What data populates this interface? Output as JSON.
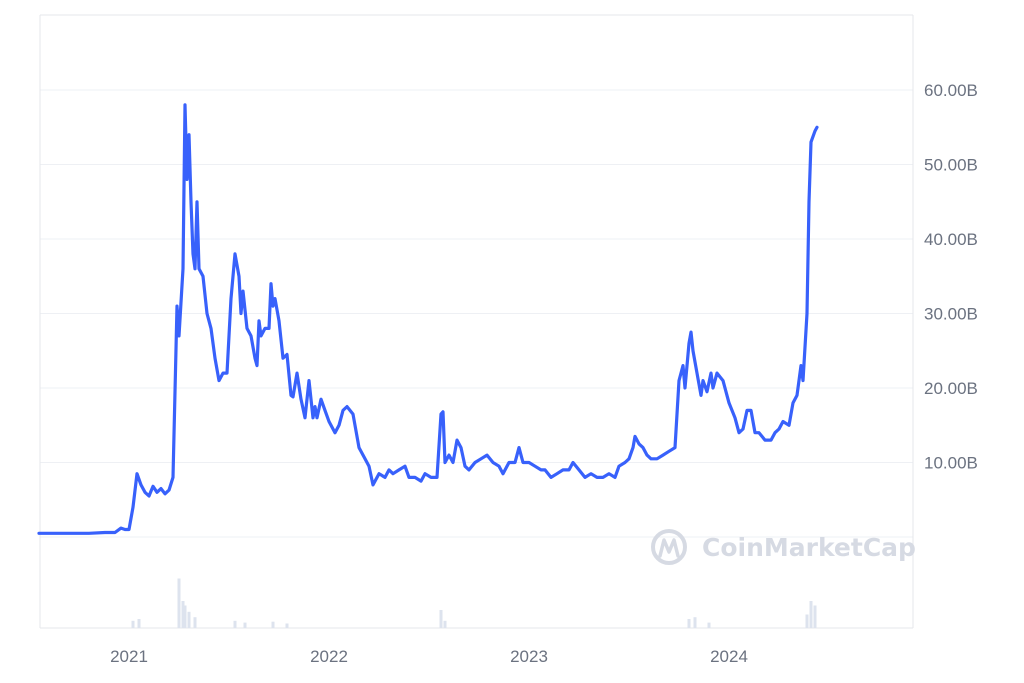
{
  "colors": {
    "line": "#3861fb",
    "grid": "#eef0f4",
    "frame": "#e5e7eb",
    "tick_text": "#6b7280",
    "volume": "#dde3ee",
    "watermark": "#d6dae3"
  },
  "watermark": {
    "text": "CoinMarketCap",
    "icon": "coinmarketcap-logo-icon"
  },
  "chart_data": {
    "type": "line",
    "title": "",
    "xlabel": "",
    "ylabel": "",
    "grid": true,
    "legend": "none",
    "x_tick_labels": [
      "2021",
      "2022",
      "2023",
      "2024"
    ],
    "y_tick_labels": [
      "60.00B",
      "50.00B",
      "40.00B",
      "30.00B",
      "20.00B",
      "10.00B"
    ],
    "y_tick_values": [
      60,
      50,
      40,
      30,
      20,
      10
    ],
    "ylim": [
      0,
      70
    ],
    "xlim": [
      2020.55,
      2024.92
    ],
    "y_unit": "B",
    "series": [
      {
        "values": [
          [
            2020.55,
            0.5
          ],
          [
            2020.65,
            0.5
          ],
          [
            2020.8,
            0.5
          ],
          [
            2020.88,
            0.6
          ],
          [
            2020.93,
            0.6
          ],
          [
            2020.96,
            1.2
          ],
          [
            2020.98,
            1.0
          ],
          [
            2021.0,
            1.0
          ],
          [
            2021.02,
            4.0
          ],
          [
            2021.04,
            8.5
          ],
          [
            2021.06,
            7.0
          ],
          [
            2021.08,
            6.0
          ],
          [
            2021.1,
            5.5
          ],
          [
            2021.12,
            6.8
          ],
          [
            2021.14,
            6.0
          ],
          [
            2021.16,
            6.5
          ],
          [
            2021.18,
            5.8
          ],
          [
            2021.2,
            6.3
          ],
          [
            2021.22,
            8.0
          ],
          [
            2021.24,
            31.0
          ],
          [
            2021.25,
            27.0
          ],
          [
            2021.27,
            36.0
          ],
          [
            2021.28,
            58.0
          ],
          [
            2021.29,
            48.0
          ],
          [
            2021.3,
            54.0
          ],
          [
            2021.31,
            45.0
          ],
          [
            2021.32,
            38.0
          ],
          [
            2021.33,
            36.0
          ],
          [
            2021.34,
            45.0
          ],
          [
            2021.35,
            36.0
          ],
          [
            2021.37,
            35.0
          ],
          [
            2021.39,
            30.0
          ],
          [
            2021.41,
            28.0
          ],
          [
            2021.43,
            24.0
          ],
          [
            2021.45,
            21.0
          ],
          [
            2021.47,
            22.0
          ],
          [
            2021.49,
            22.0
          ],
          [
            2021.51,
            32.0
          ],
          [
            2021.53,
            38.0
          ],
          [
            2021.55,
            35.0
          ],
          [
            2021.56,
            30.0
          ],
          [
            2021.57,
            33.0
          ],
          [
            2021.59,
            28.0
          ],
          [
            2021.61,
            27.0
          ],
          [
            2021.63,
            24.0
          ],
          [
            2021.64,
            23.0
          ],
          [
            2021.65,
            29.0
          ],
          [
            2021.66,
            27.0
          ],
          [
            2021.68,
            28.0
          ],
          [
            2021.7,
            28.0
          ],
          [
            2021.71,
            34.0
          ],
          [
            2021.72,
            31.0
          ],
          [
            2021.73,
            32.0
          ],
          [
            2021.75,
            29.0
          ],
          [
            2021.77,
            24.0
          ],
          [
            2021.79,
            24.5
          ],
          [
            2021.81,
            19.0
          ],
          [
            2021.82,
            18.8
          ],
          [
            2021.84,
            22.0
          ],
          [
            2021.86,
            18.5
          ],
          [
            2021.88,
            16.0
          ],
          [
            2021.9,
            21.0
          ],
          [
            2021.92,
            16.0
          ],
          [
            2021.93,
            17.5
          ],
          [
            2021.94,
            16.0
          ],
          [
            2021.96,
            18.5
          ],
          [
            2021.98,
            17.0
          ],
          [
            2022.0,
            15.5
          ],
          [
            2022.03,
            14.0
          ],
          [
            2022.05,
            15.0
          ],
          [
            2022.07,
            17.0
          ],
          [
            2022.09,
            17.5
          ],
          [
            2022.12,
            16.5
          ],
          [
            2022.15,
            12.0
          ],
          [
            2022.18,
            10.5
          ],
          [
            2022.2,
            9.5
          ],
          [
            2022.22,
            7.0
          ],
          [
            2022.25,
            8.5
          ],
          [
            2022.28,
            8.0
          ],
          [
            2022.3,
            9.0
          ],
          [
            2022.32,
            8.5
          ],
          [
            2022.35,
            9.0
          ],
          [
            2022.38,
            9.5
          ],
          [
            2022.4,
            8.0
          ],
          [
            2022.43,
            8.0
          ],
          [
            2022.46,
            7.5
          ],
          [
            2022.48,
            8.5
          ],
          [
            2022.51,
            8.0
          ],
          [
            2022.54,
            8.0
          ],
          [
            2022.56,
            16.5
          ],
          [
            2022.57,
            16.8
          ],
          [
            2022.58,
            10.0
          ],
          [
            2022.6,
            11.0
          ],
          [
            2022.62,
            10.0
          ],
          [
            2022.64,
            13.0
          ],
          [
            2022.66,
            12.0
          ],
          [
            2022.68,
            9.5
          ],
          [
            2022.7,
            9.0
          ],
          [
            2022.73,
            10.0
          ],
          [
            2022.76,
            10.5
          ],
          [
            2022.79,
            11.0
          ],
          [
            2022.82,
            10.0
          ],
          [
            2022.85,
            9.5
          ],
          [
            2022.87,
            8.5
          ],
          [
            2022.9,
            10.0
          ],
          [
            2022.93,
            10.0
          ],
          [
            2022.95,
            12.0
          ],
          [
            2022.97,
            10.0
          ],
          [
            2023.0,
            10.0
          ],
          [
            2023.03,
            9.5
          ],
          [
            2023.06,
            9.0
          ],
          [
            2023.08,
            9.0
          ],
          [
            2023.11,
            8.0
          ],
          [
            2023.14,
            8.5
          ],
          [
            2023.17,
            9.0
          ],
          [
            2023.2,
            9.0
          ],
          [
            2023.22,
            10.0
          ],
          [
            2023.25,
            9.0
          ],
          [
            2023.28,
            8.0
          ],
          [
            2023.31,
            8.5
          ],
          [
            2023.34,
            8.0
          ],
          [
            2023.37,
            8.0
          ],
          [
            2023.4,
            8.5
          ],
          [
            2023.43,
            8.0
          ],
          [
            2023.45,
            9.5
          ],
          [
            2023.48,
            10.0
          ],
          [
            2023.5,
            10.5
          ],
          [
            2023.52,
            12.0
          ],
          [
            2023.53,
            13.5
          ],
          [
            2023.55,
            12.5
          ],
          [
            2023.57,
            12.0
          ],
          [
            2023.59,
            11.0
          ],
          [
            2023.61,
            10.5
          ],
          [
            2023.64,
            10.5
          ],
          [
            2023.67,
            11.0
          ],
          [
            2023.7,
            11.5
          ],
          [
            2023.73,
            12.0
          ],
          [
            2023.75,
            21.0
          ],
          [
            2023.77,
            23.0
          ],
          [
            2023.78,
            20.0
          ],
          [
            2023.8,
            26.0
          ],
          [
            2023.81,
            27.5
          ],
          [
            2023.82,
            25.0
          ],
          [
            2023.84,
            22.0
          ],
          [
            2023.86,
            19.0
          ],
          [
            2023.87,
            21.0
          ],
          [
            2023.89,
            19.5
          ],
          [
            2023.91,
            22.0
          ],
          [
            2023.92,
            20.0
          ],
          [
            2023.94,
            22.0
          ],
          [
            2023.97,
            21.0
          ],
          [
            2024.0,
            18.0
          ],
          [
            2024.03,
            16.0
          ],
          [
            2024.05,
            14.0
          ],
          [
            2024.07,
            14.5
          ],
          [
            2024.09,
            17.0
          ],
          [
            2024.11,
            17.0
          ],
          [
            2024.13,
            14.0
          ],
          [
            2024.15,
            14.0
          ],
          [
            2024.18,
            13.0
          ],
          [
            2024.21,
            13.0
          ],
          [
            2024.23,
            14.0
          ],
          [
            2024.25,
            14.5
          ],
          [
            2024.27,
            15.5
          ],
          [
            2024.3,
            15.0
          ],
          [
            2024.32,
            18.0
          ],
          [
            2024.34,
            19.0
          ],
          [
            2024.36,
            23.0
          ],
          [
            2024.37,
            21.0
          ],
          [
            2024.39,
            30.0
          ],
          [
            2024.4,
            45.0
          ],
          [
            2024.41,
            53.0
          ],
          [
            2024.43,
            54.5
          ],
          [
            2024.44,
            55.0
          ]
        ]
      }
    ],
    "volume_note_bars": [
      [
        2021.02,
        0.08
      ],
      [
        2021.05,
        0.1
      ],
      [
        2021.25,
        0.55
      ],
      [
        2021.27,
        0.3
      ],
      [
        2021.28,
        0.25
      ],
      [
        2021.3,
        0.18
      ],
      [
        2021.33,
        0.12
      ],
      [
        2021.53,
        0.08
      ],
      [
        2021.58,
        0.06
      ],
      [
        2021.72,
        0.07
      ],
      [
        2021.79,
        0.05
      ],
      [
        2022.56,
        0.2
      ],
      [
        2022.58,
        0.08
      ],
      [
        2023.8,
        0.1
      ],
      [
        2023.83,
        0.12
      ],
      [
        2023.9,
        0.06
      ],
      [
        2024.39,
        0.15
      ],
      [
        2024.41,
        0.3
      ],
      [
        2024.43,
        0.25
      ]
    ]
  }
}
